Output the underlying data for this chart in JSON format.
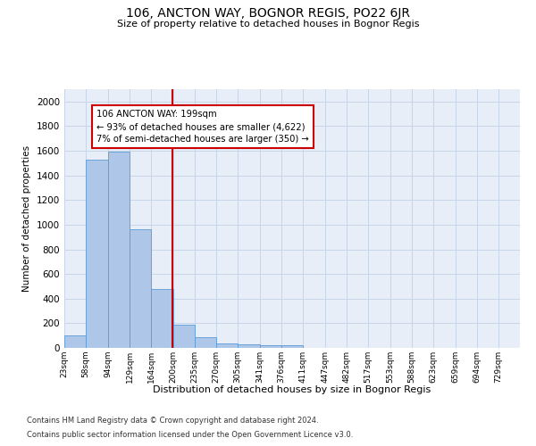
{
  "title": "106, ANCTON WAY, BOGNOR REGIS, PO22 6JR",
  "subtitle": "Size of property relative to detached houses in Bognor Regis",
  "xlabel": "Distribution of detached houses by size in Bognor Regis",
  "ylabel": "Number of detached properties",
  "footnote1": "Contains HM Land Registry data © Crown copyright and database right 2024.",
  "footnote2": "Contains public sector information licensed under the Open Government Licence v3.0.",
  "annotation_line1": "106 ANCTON WAY: 199sqm",
  "annotation_line2": "← 93% of detached houses are smaller (4,622)",
  "annotation_line3": "7% of semi-detached houses are larger (350) →",
  "bar_left_edges": [
    23,
    58,
    94,
    129,
    164,
    200,
    235,
    270,
    305,
    341,
    376,
    411,
    447,
    482,
    517,
    553,
    588,
    623,
    659,
    694
  ],
  "bar_widths": [
    35,
    36,
    35,
    35,
    36,
    35,
    35,
    35,
    36,
    35,
    35,
    36,
    35,
    35,
    36,
    35,
    35,
    36,
    35,
    35
  ],
  "bar_heights": [
    105,
    1530,
    1590,
    960,
    480,
    185,
    90,
    35,
    30,
    20,
    20,
    0,
    0,
    0,
    0,
    0,
    0,
    0,
    0,
    0
  ],
  "tick_labels": [
    "23sqm",
    "58sqm",
    "94sqm",
    "129sqm",
    "164sqm",
    "200sqm",
    "235sqm",
    "270sqm",
    "305sqm",
    "341sqm",
    "376sqm",
    "411sqm",
    "447sqm",
    "482sqm",
    "517sqm",
    "553sqm",
    "588sqm",
    "623sqm",
    "659sqm",
    "694sqm",
    "729sqm"
  ],
  "bar_color": "#aec6e8",
  "bar_edge_color": "#5b9bd5",
  "vline_color": "#cc0000",
  "annotation_box_color": "#cc0000",
  "grid_color": "#c8d4e8",
  "background_color": "#e8eef8",
  "ylim": [
    0,
    2100
  ],
  "yticks": [
    0,
    200,
    400,
    600,
    800,
    1000,
    1200,
    1400,
    1600,
    1800,
    2000
  ]
}
